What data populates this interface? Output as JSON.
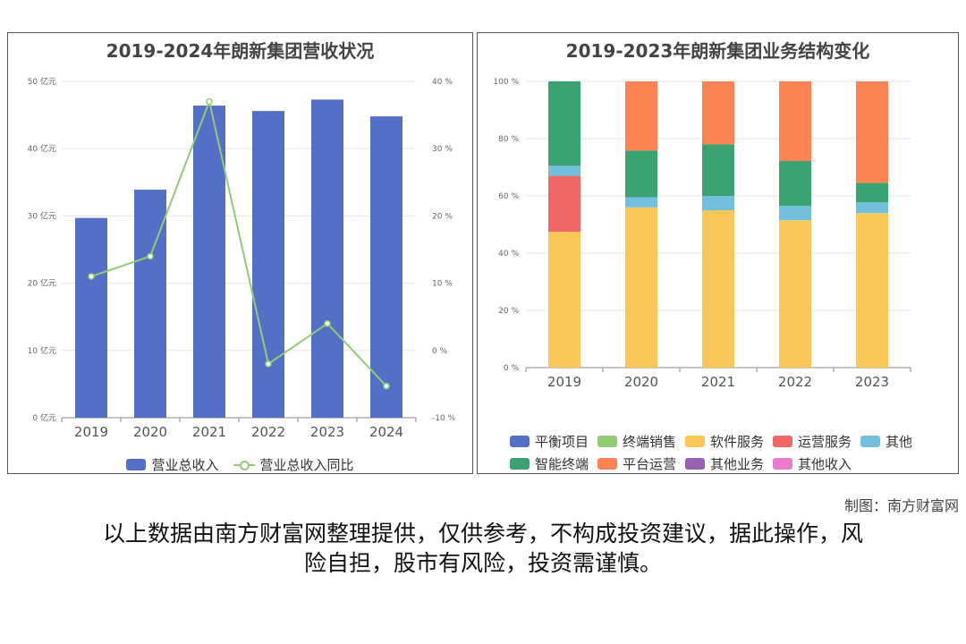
{
  "footer": {
    "credit": "制图：南方财富网",
    "disclaimer_line1": "以上数据由南方财富网整理提供，仅供参考，不构成投资建议，据此操作，风",
    "disclaimer_line2": "险自担，股市有风险，投资需谨慎。"
  },
  "colors": {
    "blue": "#5470c6",
    "green": "#91cc75",
    "yellow": "#fac858",
    "red": "#ee6666",
    "cyan": "#73c0de",
    "darkgreen": "#3ba272",
    "orange": "#fc8452",
    "purple": "#9a60b4",
    "pink": "#ea7ccc"
  },
  "chart_data": [
    {
      "type": "bar",
      "title": "2019-2024年朗新集团营收状况",
      "categories": [
        "2019",
        "2020",
        "2021",
        "2022",
        "2023",
        "2024"
      ],
      "y_ticks": [
        "0 亿元",
        "10 亿元",
        "20 亿元",
        "30 亿元",
        "40 亿元",
        "50 亿元"
      ],
      "y2_ticks": [
        "-10 %",
        "0 %",
        "10 %",
        "20 %",
        "30 %",
        "40 %"
      ],
      "ylim": [
        0,
        50
      ],
      "y2lim": [
        -10,
        40
      ],
      "series": [
        {
          "name": "营业总收入",
          "type": "bar",
          "color": "#5470c6",
          "values": [
            29.7,
            33.9,
            46.4,
            45.6,
            47.3,
            44.8
          ]
        },
        {
          "name": "营业总收入同比",
          "type": "line",
          "color": "#91cc75",
          "values": [
            11.0,
            14.0,
            37.0,
            -2.0,
            4.0,
            -5.3
          ]
        }
      ]
    },
    {
      "type": "bar",
      "stacked": true,
      "title": "2019-2023年朗新集团业务结构变化",
      "categories": [
        "2019",
        "2020",
        "2021",
        "2022",
        "2023"
      ],
      "y_ticks": [
        "0 %",
        "20 %",
        "40 %",
        "60 %",
        "80 %",
        "100 %"
      ],
      "ylim": [
        0,
        100
      ],
      "series": [
        {
          "name": "平衡项目",
          "color": "#5470c6",
          "values": [
            0,
            0,
            0,
            0,
            0
          ]
        },
        {
          "name": "终端销售",
          "color": "#91cc75",
          "values": [
            0,
            0,
            0,
            0,
            0
          ]
        },
        {
          "name": "软件服务",
          "color": "#fac858",
          "values": [
            47.5,
            56,
            55,
            51.5,
            54
          ]
        },
        {
          "name": "运营服务",
          "color": "#ee6666",
          "values": [
            19.5,
            0,
            0,
            0,
            0
          ]
        },
        {
          "name": "其他",
          "color": "#73c0de",
          "values": [
            3.5,
            3.5,
            5,
            5,
            3.8
          ]
        },
        {
          "name": "智能终端",
          "color": "#3ba272",
          "values": [
            29.5,
            16.3,
            18,
            15.7,
            6.7
          ]
        },
        {
          "name": "平台运营",
          "color": "#fc8452",
          "values": [
            0,
            24.2,
            22,
            27.8,
            35.5
          ]
        },
        {
          "name": "其他业务",
          "color": "#9a60b4",
          "values": [
            0,
            0,
            0,
            0,
            0
          ]
        },
        {
          "name": "其他收入",
          "color": "#ea7ccc",
          "values": [
            0,
            0,
            0,
            0,
            0
          ]
        }
      ]
    }
  ]
}
